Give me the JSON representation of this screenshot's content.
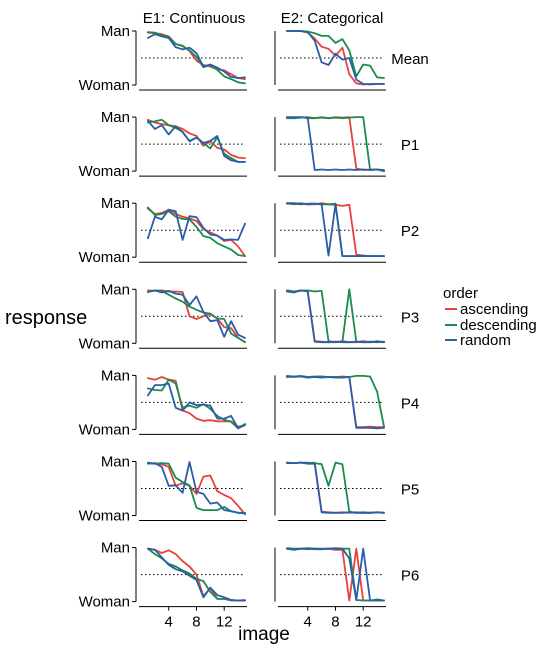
{
  "chart_data": {
    "type": "line",
    "column_titles": [
      "E1: Continuous",
      "E2: Categorical"
    ],
    "row_labels": [
      "Mean",
      "P1",
      "P2",
      "P3",
      "P4",
      "P5",
      "P6"
    ],
    "ylabel": "response",
    "xlabel": "image",
    "y_tick_labels": [
      "Woman",
      "Man"
    ],
    "ylim": [
      0,
      1
    ],
    "xlim": [
      0,
      15
    ],
    "x_ticks": [
      4,
      8,
      12
    ],
    "reference_line": {
      "y": 0.5,
      "style": "dotted"
    },
    "legend": {
      "title": "order",
      "position": "right",
      "entries": [
        "ascending",
        "descending",
        "random"
      ]
    },
    "colors": {
      "ascending": "#e8413c",
      "descending": "#1a8c4e",
      "random": "#2a5ea8"
    },
    "x": [
      1,
      2,
      3,
      4,
      5,
      6,
      7,
      8,
      9,
      10,
      11,
      12,
      13,
      14,
      15
    ],
    "panels": [
      {
        "row": "Mean",
        "experiment": "E1: Continuous",
        "series": [
          {
            "name": "ascending",
            "values": [
              0.97,
              0.96,
              0.94,
              0.9,
              0.76,
              0.73,
              0.63,
              0.45,
              0.37,
              0.34,
              0.29,
              0.27,
              0.2,
              0.13,
              0.11
            ]
          },
          {
            "name": "descending",
            "values": [
              0.98,
              0.97,
              0.92,
              0.89,
              0.76,
              0.72,
              0.64,
              0.52,
              0.33,
              0.37,
              0.28,
              0.16,
              0.11,
              0.05,
              0.03
            ]
          },
          {
            "name": "random",
            "values": [
              0.87,
              0.94,
              0.9,
              0.87,
              0.7,
              0.66,
              0.69,
              0.59,
              0.34,
              0.38,
              0.32,
              0.25,
              0.15,
              0.13,
              0.14
            ]
          }
        ]
      },
      {
        "row": "Mean",
        "experiment": "E2: Categorical",
        "series": [
          {
            "name": "ascending",
            "values": [
              1.0,
              1.0,
              1.0,
              0.97,
              0.86,
              0.71,
              0.67,
              0.54,
              0.69,
              0.2,
              0.03,
              0.01,
              0.02,
              0.02,
              0.02
            ]
          },
          {
            "name": "descending",
            "values": [
              1.0,
              1.0,
              1.0,
              0.99,
              0.96,
              0.91,
              0.91,
              0.78,
              0.85,
              0.64,
              0.16,
              0.38,
              0.36,
              0.14,
              0.13
            ]
          },
          {
            "name": "random",
            "values": [
              1.0,
              1.0,
              1.0,
              0.98,
              0.82,
              0.42,
              0.37,
              0.58,
              0.47,
              0.5,
              0.1,
              0.02,
              0.01,
              0.02,
              0.02
            ]
          }
        ]
      },
      {
        "row": "P1",
        "experiment": "E1: Continuous",
        "series": [
          {
            "name": "ascending",
            "values": [
              0.95,
              0.9,
              0.87,
              0.85,
              0.83,
              0.78,
              0.7,
              0.65,
              0.47,
              0.55,
              0.43,
              0.4,
              0.3,
              0.25,
              0.24
            ]
          },
          {
            "name": "descending",
            "values": [
              0.9,
              0.92,
              0.95,
              0.85,
              0.8,
              0.73,
              0.55,
              0.62,
              0.52,
              0.42,
              0.63,
              0.32,
              0.24,
              0.17,
              0.17
            ]
          },
          {
            "name": "random",
            "values": [
              0.93,
              0.78,
              0.85,
              0.68,
              0.83,
              0.72,
              0.56,
              0.62,
              0.52,
              0.56,
              0.65,
              0.28,
              0.2,
              0.17,
              0.17
            ]
          }
        ]
      },
      {
        "row": "P1",
        "experiment": "E2: Categorical",
        "series": [
          {
            "name": "ascending",
            "values": [
              1.0,
              0.98,
              1.0,
              0.98,
              0.98,
              1.0,
              0.98,
              1.0,
              0.99,
              1.0,
              0.05,
              0.02,
              0.03,
              0.03,
              0.0
            ]
          },
          {
            "name": "descending",
            "values": [
              0.98,
              0.98,
              0.99,
              1.0,
              0.98,
              0.99,
              0.98,
              0.99,
              0.98,
              0.99,
              1.0,
              1.0,
              0.02,
              0.03,
              0.0
            ]
          },
          {
            "name": "random",
            "values": [
              1.0,
              1.0,
              1.0,
              0.99,
              0.02,
              0.03,
              0.02,
              0.03,
              0.02,
              0.03,
              0.02,
              0.03,
              0.02,
              0.03,
              0.02
            ]
          }
        ]
      },
      {
        "row": "P2",
        "experiment": "E1: Continuous",
        "series": [
          {
            "name": "ascending",
            "values": [
              0.9,
              0.8,
              0.82,
              0.88,
              0.8,
              0.75,
              0.72,
              0.67,
              0.52,
              0.46,
              0.4,
              0.3,
              0.32,
              0.2,
              0.02
            ]
          },
          {
            "name": "descending",
            "values": [
              0.92,
              0.78,
              0.8,
              0.85,
              0.75,
              0.71,
              0.7,
              0.56,
              0.39,
              0.36,
              0.26,
              0.2,
              0.14,
              0.04,
              0.02
            ]
          },
          {
            "name": "random",
            "values": [
              0.35,
              0.75,
              0.7,
              0.88,
              0.85,
              0.32,
              0.76,
              0.74,
              0.54,
              0.42,
              0.4,
              0.32,
              0.33,
              0.32,
              0.62
            ]
          }
        ]
      },
      {
        "row": "P2",
        "experiment": "E2: Categorical",
        "series": [
          {
            "name": "ascending",
            "values": [
              1.0,
              0.98,
              1.0,
              0.98,
              0.98,
              1.0,
              0.98,
              0.97,
              0.95,
              0.97,
              0.05,
              0.03,
              0.02,
              0.02,
              0.02
            ]
          },
          {
            "name": "descending",
            "values": [
              0.99,
              0.99,
              0.98,
              0.99,
              0.99,
              0.98,
              0.98,
              0.99,
              0.02,
              0.02,
              0.02,
              0.02,
              0.02,
              0.02,
              0.02
            ]
          },
          {
            "name": "random",
            "values": [
              1.0,
              1.0,
              0.99,
              0.98,
              0.99,
              0.98,
              0.03,
              0.98,
              0.02,
              0.02,
              0.02,
              0.03,
              0.02,
              0.02,
              0.02
            ]
          }
        ]
      },
      {
        "row": "P3",
        "experiment": "E1: Continuous",
        "series": [
          {
            "name": "ascending",
            "values": [
              0.98,
              0.97,
              0.98,
              0.96,
              0.96,
              0.95,
              0.5,
              0.45,
              0.5,
              0.54,
              0.46,
              0.3,
              0.28,
              0.1,
              0.02
            ]
          },
          {
            "name": "descending",
            "values": [
              0.95,
              0.98,
              0.97,
              0.9,
              0.83,
              0.77,
              0.68,
              0.62,
              0.57,
              0.55,
              0.46,
              0.45,
              0.18,
              0.1,
              0.02
            ]
          },
          {
            "name": "random",
            "values": [
              0.95,
              0.98,
              0.94,
              0.97,
              0.92,
              0.9,
              0.71,
              0.87,
              0.58,
              0.41,
              0.43,
              0.12,
              0.41,
              0.16,
              0.1
            ]
          }
        ]
      },
      {
        "row": "P3",
        "experiment": "E2: Categorical",
        "series": [
          {
            "name": "ascending",
            "values": [
              0.98,
              0.96,
              0.98,
              0.97,
              0.04,
              0.03,
              0.02,
              0.02,
              0.04,
              0.02,
              0.02,
              0.04,
              0.02,
              0.04,
              0.02
            ]
          },
          {
            "name": "descending",
            "values": [
              0.98,
              0.96,
              0.97,
              0.98,
              0.96,
              0.97,
              0.04,
              0.02,
              0.03,
              1.0,
              0.03,
              0.02,
              0.03,
              0.02,
              0.03
            ]
          },
          {
            "name": "random",
            "values": [
              0.96,
              0.94,
              0.98,
              0.96,
              0.03,
              0.02,
              0.02,
              0.03,
              0.02,
              0.02,
              0.03,
              0.02,
              0.02,
              0.03,
              0.02
            ]
          }
        ]
      },
      {
        "row": "P4",
        "experiment": "E1: Continuous",
        "series": [
          {
            "name": "ascending",
            "values": [
              0.95,
              0.92,
              0.97,
              0.92,
              0.9,
              0.35,
              0.3,
              0.2,
              0.16,
              0.17,
              0.15,
              0.15,
              0.15,
              0.05,
              0.08
            ]
          },
          {
            "name": "descending",
            "values": [
              0.76,
              0.73,
              0.72,
              0.92,
              0.85,
              0.4,
              0.44,
              0.4,
              0.47,
              0.38,
              0.25,
              0.18,
              0.14,
              0.02,
              0.1
            ]
          },
          {
            "name": "random",
            "values": [
              0.63,
              0.82,
              0.82,
              0.85,
              0.4,
              0.35,
              0.5,
              0.45,
              0.46,
              0.44,
              0.2,
              0.2,
              0.25,
              0.02,
              0.08
            ]
          }
        ]
      },
      {
        "row": "P4",
        "experiment": "E2: Categorical",
        "series": [
          {
            "name": "ascending",
            "values": [
              0.98,
              0.97,
              0.98,
              0.97,
              0.97,
              0.98,
              0.97,
              0.97,
              0.98,
              0.97,
              0.04,
              0.04,
              0.05,
              0.04,
              0.04
            ]
          },
          {
            "name": "descending",
            "values": [
              0.99,
              0.98,
              0.99,
              0.97,
              0.98,
              0.98,
              0.97,
              0.97,
              0.97,
              0.97,
              0.99,
              0.99,
              0.98,
              0.7,
              0.05
            ]
          },
          {
            "name": "random",
            "values": [
              0.97,
              0.98,
              0.98,
              0.96,
              0.97,
              0.96,
              0.97,
              0.96,
              0.96,
              0.97,
              0.03,
              0.03,
              0.03,
              0.02,
              0.03
            ]
          }
        ]
      },
      {
        "row": "P5",
        "experiment": "E1: Continuous",
        "series": [
          {
            "name": "ascending",
            "values": [
              0.97,
              0.96,
              0.95,
              0.9,
              0.55,
              0.6,
              0.55,
              0.4,
              0.72,
              0.74,
              0.45,
              0.38,
              0.32,
              0.18,
              0.02
            ]
          },
          {
            "name": "descending",
            "values": [
              0.98,
              0.96,
              0.97,
              0.96,
              0.7,
              0.62,
              0.56,
              0.14,
              0.1,
              0.1,
              0.1,
              0.16,
              0.08,
              0.05,
              0.05
            ]
          },
          {
            "name": "random",
            "values": [
              0.96,
              0.97,
              0.9,
              0.55,
              0.56,
              0.42,
              0.99,
              0.44,
              0.4,
              0.22,
              0.24,
              0.1,
              0.08,
              0.05,
              0.04
            ]
          }
        ]
      },
      {
        "row": "P5",
        "experiment": "E2: Categorical",
        "series": [
          {
            "name": "ascending",
            "values": [
              0.98,
              0.97,
              0.98,
              0.97,
              0.98,
              0.07,
              0.06,
              0.05,
              0.06,
              0.05,
              0.06,
              0.05,
              0.05,
              0.06,
              0.05
            ]
          },
          {
            "name": "descending",
            "values": [
              0.98,
              0.97,
              0.98,
              0.98,
              0.97,
              0.95,
              0.55,
              0.98,
              0.95,
              0.07,
              0.05,
              0.06,
              0.05,
              0.06,
              0.05
            ]
          },
          {
            "name": "random",
            "values": [
              0.97,
              0.97,
              0.98,
              0.96,
              0.96,
              0.06,
              0.05,
              0.05,
              0.05,
              0.06,
              0.05,
              0.05,
              0.05,
              0.06,
              0.05
            ]
          }
        ]
      },
      {
        "row": "P6",
        "experiment": "E1: Continuous",
        "series": [
          {
            "name": "ascending",
            "values": [
              0.98,
              0.96,
              0.9,
              0.95,
              0.88,
              0.75,
              0.65,
              0.5,
              0.1,
              0.25,
              0.05,
              0.05,
              0.02,
              0.02,
              0.03
            ]
          },
          {
            "name": "descending",
            "values": [
              0.98,
              0.88,
              0.8,
              0.7,
              0.65,
              0.58,
              0.52,
              0.42,
              0.38,
              0.18,
              0.05,
              0.05,
              0.03,
              0.02,
              0.02
            ]
          },
          {
            "name": "random",
            "values": [
              0.98,
              0.96,
              0.82,
              0.68,
              0.6,
              0.56,
              0.48,
              0.4,
              0.08,
              0.26,
              0.12,
              0.08,
              0.03,
              0.02,
              0.02
            ]
          }
        ]
      },
      {
        "row": "P6",
        "experiment": "E2: Categorical",
        "series": [
          {
            "name": "ascending",
            "values": [
              0.98,
              0.97,
              0.98,
              0.97,
              0.98,
              0.97,
              0.98,
              0.96,
              0.96,
              0.02,
              0.98,
              0.02,
              0.02,
              0.02,
              0.02
            ]
          },
          {
            "name": "descending",
            "values": [
              0.99,
              0.98,
              0.98,
              0.99,
              0.98,
              0.98,
              0.98,
              0.99,
              0.98,
              0.98,
              0.03,
              0.02,
              0.02,
              0.04,
              0.02
            ]
          },
          {
            "name": "random",
            "values": [
              0.98,
              0.96,
              0.98,
              0.98,
              0.97,
              0.97,
              0.98,
              0.98,
              0.98,
              0.8,
              0.03,
              0.98,
              0.02,
              0.02,
              0.02
            ]
          }
        ]
      }
    ]
  }
}
